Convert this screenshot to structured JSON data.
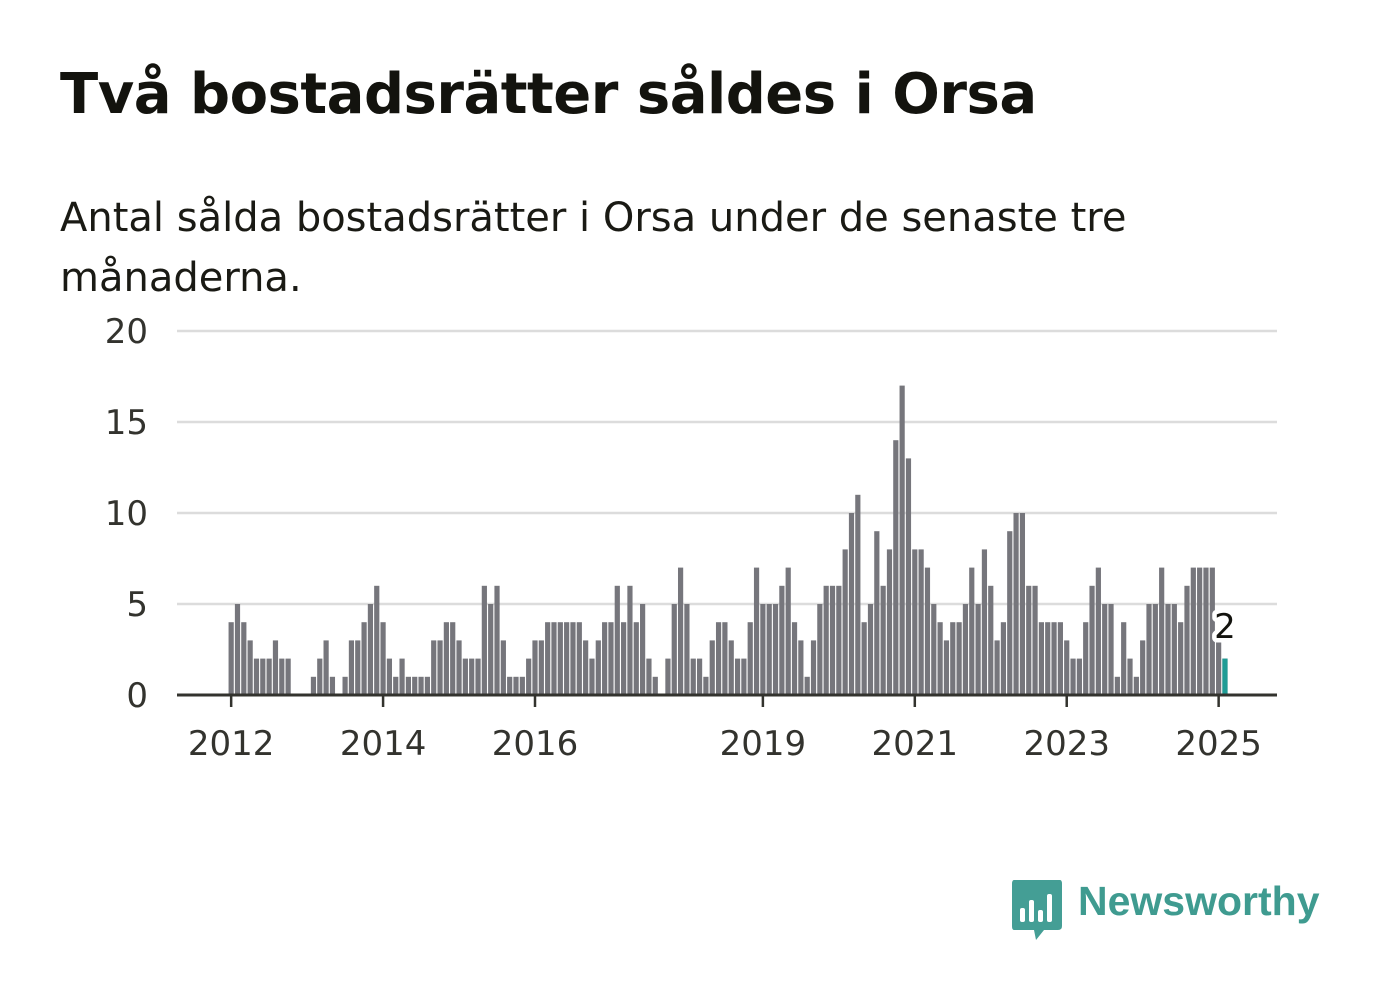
{
  "header": {
    "title": "Två bostadsrätter såldes i Orsa",
    "subtitle": "Antal sålda bostadsrätter i Orsa under de senaste tre månaderna."
  },
  "brand": {
    "name": "Newsworthy",
    "icon": "bar-chart-speech-bubble-icon",
    "color": "#449e95"
  },
  "chart_data": {
    "type": "bar",
    "title": "",
    "xlabel": "",
    "ylabel": "",
    "ylim": [
      0,
      20
    ],
    "yticks": [
      "0",
      "5",
      "10",
      "15",
      "20"
    ],
    "grid": true,
    "x_start": "2011-11",
    "x_tick_labels": [
      {
        "label": "2012",
        "index": 2
      },
      {
        "label": "2014",
        "index": 26
      },
      {
        "label": "2016",
        "index": 50
      },
      {
        "label": "2019",
        "index": 86
      },
      {
        "label": "2021",
        "index": 110
      },
      {
        "label": "2023",
        "index": 134
      },
      {
        "label": "2025",
        "index": 158
      }
    ],
    "values": [
      0,
      0,
      4,
      5,
      4,
      3,
      2,
      2,
      2,
      3,
      2,
      2,
      0,
      0,
      0,
      1,
      2,
      3,
      1,
      0,
      1,
      3,
      3,
      4,
      5,
      6,
      4,
      2,
      1,
      2,
      1,
      1,
      1,
      1,
      3,
      3,
      4,
      4,
      3,
      2,
      2,
      2,
      6,
      5,
      6,
      3,
      1,
      1,
      1,
      2,
      3,
      3,
      4,
      4,
      4,
      4,
      4,
      4,
      3,
      2,
      3,
      4,
      4,
      6,
      4,
      6,
      4,
      5,
      2,
      1,
      0,
      2,
      5,
      7,
      5,
      2,
      2,
      1,
      3,
      4,
      4,
      3,
      2,
      2,
      4,
      7,
      5,
      5,
      5,
      6,
      7,
      4,
      3,
      1,
      3,
      5,
      6,
      6,
      6,
      8,
      10,
      11,
      4,
      5,
      9,
      6,
      8,
      14,
      17,
      13,
      8,
      8,
      7,
      5,
      4,
      3,
      4,
      4,
      5,
      7,
      5,
      8,
      6,
      3,
      4,
      9,
      10,
      10,
      6,
      6,
      4,
      4,
      4,
      4,
      3,
      2,
      2,
      4,
      6,
      7,
      5,
      5,
      1,
      4,
      2,
      1,
      3,
      5,
      5,
      7,
      5,
      5,
      4,
      6,
      7,
      7,
      7,
      7,
      3,
      2
    ],
    "highlight": {
      "index": 159,
      "value": 2,
      "label": "2",
      "color": "#1f9c95"
    },
    "bar_color": "#76767c"
  }
}
